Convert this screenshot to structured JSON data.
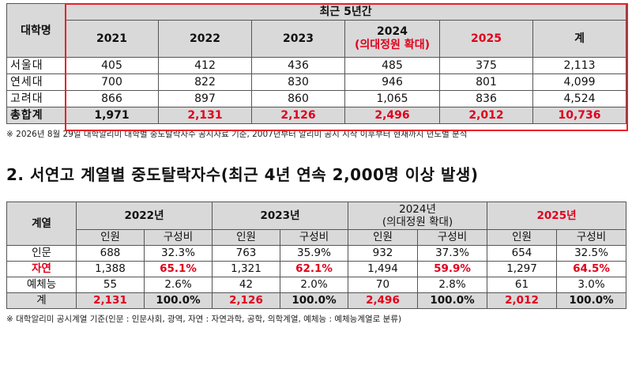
{
  "table1": {
    "header_univ": "대학명",
    "header_period": "최근 5년간",
    "years": [
      "2021",
      "2022",
      "2023",
      "2024",
      "2025",
      "계"
    ],
    "year_2024_sub": "(의대정원 확대)",
    "rows": [
      {
        "name": "서울대",
        "values": [
          "405",
          "412",
          "436",
          "485",
          "375",
          "2,113"
        ]
      },
      {
        "name": "연세대",
        "values": [
          "700",
          "822",
          "830",
          "946",
          "801",
          "4,099"
        ]
      },
      {
        "name": "고려대",
        "values": [
          "866",
          "897",
          "860",
          "1,065",
          "836",
          "4,524"
        ]
      }
    ],
    "total": {
      "name": "총합계",
      "values": [
        "1,971",
        "2,131",
        "2,126",
        "2,496",
        "2,012",
        "10,736"
      ]
    },
    "accent_color": "#e0001b"
  },
  "note1": "※ 2026년 8월 29일 대학알리미 대학별 중도탈락자수 공시자료 기준, 2007년부터 알리미 공시 시작 이후부터 현재까지 년도별 분석",
  "section_title": "2. 서연고 계열별 중도탈락자수(최근 4년 연속 2,000명 이상 발생)",
  "table2": {
    "header_field": "계열",
    "years": [
      "2022년",
      "2023년",
      "2024년",
      "2025년"
    ],
    "year_2024_sub": "(의대정원 확대)",
    "sub_headers": [
      "인원",
      "구성비"
    ],
    "rows": [
      {
        "name": "인문",
        "values": [
          "688",
          "32.3%",
          "763",
          "35.9%",
          "932",
          "37.3%",
          "654",
          "32.5%"
        ]
      },
      {
        "name": "자연",
        "values": [
          "1,388",
          "65.1%",
          "1,321",
          "62.1%",
          "1,494",
          "59.9%",
          "1,297",
          "64.5%"
        ]
      },
      {
        "name": "예체능",
        "values": [
          "55",
          "2.6%",
          "42",
          "2.0%",
          "70",
          "2.8%",
          "61",
          "3.0%"
        ]
      }
    ],
    "total": {
      "name": "계",
      "values": [
        "2,131",
        "100.0%",
        "2,126",
        "100.0%",
        "2,496",
        "100.0%",
        "2,012",
        "100.0%"
      ]
    }
  },
  "note2": "※ 대학알리미 공시계열 기준(인문 : 인문사회, 광역, 자연 : 자연과학, 공학, 의학계열, 예체능 : 예체능계열로 분류)"
}
